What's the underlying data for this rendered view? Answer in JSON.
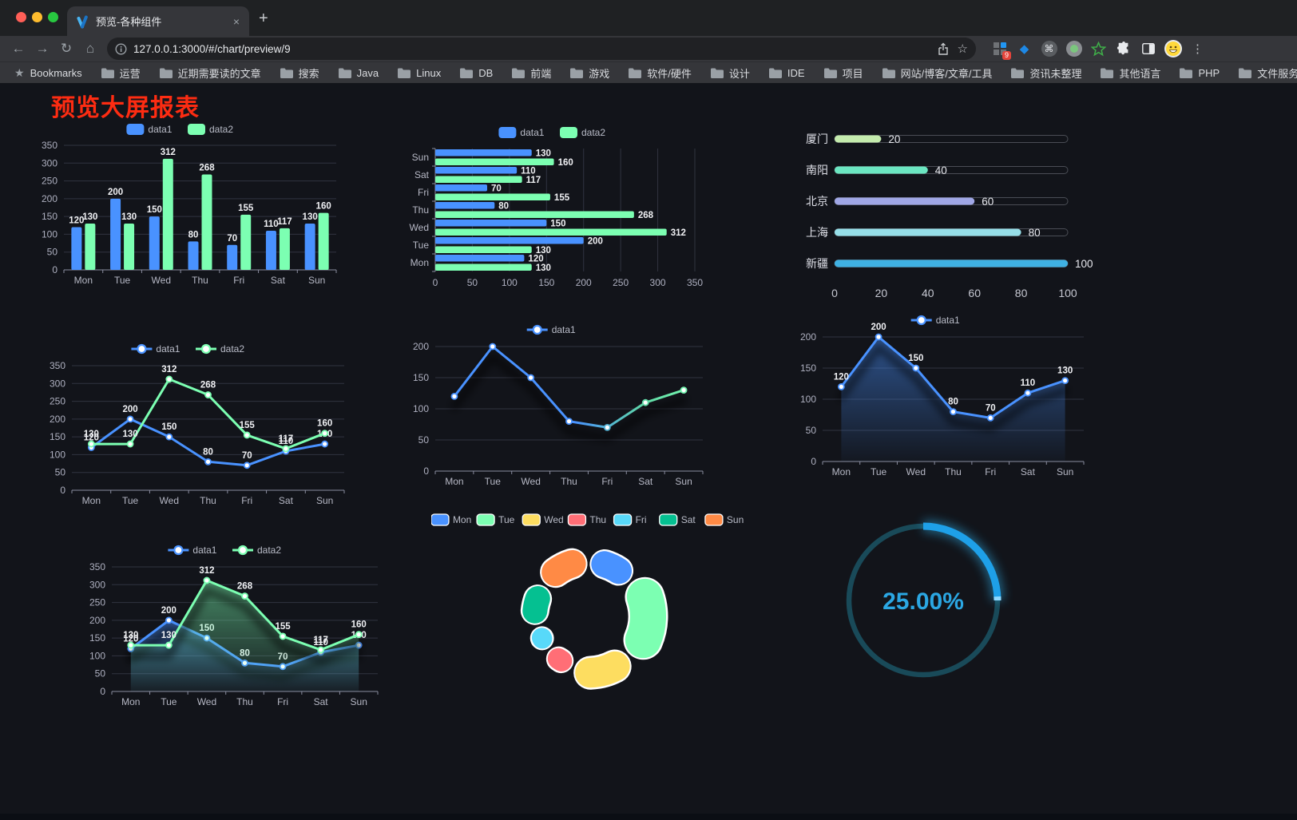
{
  "browser": {
    "tab_title": "预览-各种组件",
    "close_glyph": "×",
    "newtab_glyph": "+",
    "back_glyph": "←",
    "forward_glyph": "→",
    "reload_glyph": "↻",
    "home_glyph": "⌂",
    "url": "127.0.0.1:3000/#/chart/preview/9",
    "star_glyph": "☆",
    "ext_badge": "9",
    "gem_glyph": "◆",
    "cmd_glyph": "⌘",
    "menu_glyph": "⋮",
    "bookmarks_label": "Bookmarks",
    "bookmarks_star": "★",
    "bookmarks": [
      "运营",
      "近期需要读的文章",
      "搜索",
      "Java",
      "Linux",
      "DB",
      "前端",
      "游戏",
      "软件/硬件",
      "设计",
      "IDE",
      "项目",
      "网站/博客/文章/工具",
      "资讯未整理",
      "其他语言",
      "PHP",
      "文件服务器"
    ],
    "overflow_glyph": "»",
    "other_bookmarks": "其他书签"
  },
  "page": {
    "title": "预览大屏报表",
    "title_color": "#fd2c12"
  },
  "chart_data": [
    {
      "id": "bar-vertical",
      "type": "bar",
      "legend": [
        "data1",
        "data2"
      ],
      "categories": [
        "Mon",
        "Tue",
        "Wed",
        "Thu",
        "Fri",
        "Sat",
        "Sun"
      ],
      "series": [
        {
          "name": "data1",
          "color": "#4992ff",
          "values": [
            120,
            200,
            150,
            80,
            70,
            110,
            130
          ]
        },
        {
          "name": "data2",
          "color": "#7cffb2",
          "values": [
            130,
            130,
            312,
            268,
            155,
            117,
            160
          ]
        }
      ],
      "ylim": [
        0,
        350
      ],
      "ytick_step": 50,
      "grid": true
    },
    {
      "id": "bar-horizontal",
      "type": "hbar",
      "legend": [
        "data1",
        "data2"
      ],
      "categories": [
        "Mon",
        "Tue",
        "Wed",
        "Thu",
        "Fri",
        "Sat",
        "Sun"
      ],
      "series": [
        {
          "name": "data1",
          "color": "#4992ff",
          "values": [
            120,
            200,
            150,
            80,
            70,
            110,
            130
          ]
        },
        {
          "name": "data2",
          "color": "#7cffb2",
          "values": [
            130,
            130,
            312,
            268,
            155,
            117,
            160
          ]
        }
      ],
      "xlim": [
        0,
        350
      ],
      "xtick_step": 50,
      "grid": true
    },
    {
      "id": "city-progress",
      "type": "progress",
      "rows": [
        {
          "label": "厦门",
          "value": 20,
          "color": "#c4ebad"
        },
        {
          "label": "南阳",
          "value": 40,
          "color": "#6be6c1"
        },
        {
          "label": "北京",
          "value": 60,
          "color": "#a0a7e6"
        },
        {
          "label": "上海",
          "value": 80,
          "color": "#96dee8"
        },
        {
          "label": "新疆",
          "value": 100,
          "color": "#3fb1e3"
        }
      ],
      "axis_ticks": [
        0,
        20,
        40,
        60,
        80,
        100
      ],
      "max": 100
    },
    {
      "id": "line-two-series",
      "type": "line",
      "legend": [
        "data1",
        "data2"
      ],
      "categories": [
        "Mon",
        "Tue",
        "Wed",
        "Thu",
        "Fri",
        "Sat",
        "Sun"
      ],
      "series": [
        {
          "name": "data1",
          "color": "#4992ff",
          "values": [
            120,
            200,
            150,
            80,
            70,
            110,
            130
          ]
        },
        {
          "name": "data2",
          "color": "#7cffb2",
          "values": [
            130,
            130,
            312,
            268,
            155,
            117,
            160
          ]
        }
      ],
      "ylim": [
        0,
        350
      ],
      "ytick_step": 50,
      "labels": true,
      "grid": true
    },
    {
      "id": "line-gradient",
      "type": "line",
      "legend": [
        "data1"
      ],
      "categories": [
        "Mon",
        "Tue",
        "Wed",
        "Thu",
        "Fri",
        "Sat",
        "Sun"
      ],
      "series": [
        {
          "name": "data1",
          "color": "#4992ff",
          "color2": "#7cffb2",
          "gradient": true,
          "values": [
            120,
            200,
            150,
            80,
            70,
            110,
            130
          ]
        }
      ],
      "ylim": [
        0,
        200
      ],
      "ytick_step": 50,
      "labels": false,
      "shadow": true,
      "grid": true
    },
    {
      "id": "line-area",
      "type": "line",
      "legend": [
        "data1"
      ],
      "categories": [
        "Mon",
        "Tue",
        "Wed",
        "Thu",
        "Fri",
        "Sat",
        "Sun"
      ],
      "series": [
        {
          "name": "data1",
          "color": "#4992ff",
          "area": true,
          "values": [
            120,
            200,
            150,
            80,
            70,
            110,
            130
          ]
        }
      ],
      "ylim": [
        0,
        200
      ],
      "ytick_step": 50,
      "labels": true,
      "shadow": true,
      "grid": true
    },
    {
      "id": "line-two-area",
      "type": "line",
      "legend": [
        "data1",
        "data2"
      ],
      "categories": [
        "Mon",
        "Tue",
        "Wed",
        "Thu",
        "Fri",
        "Sat",
        "Sun"
      ],
      "series": [
        {
          "name": "data1",
          "color": "#4992ff",
          "area": true,
          "values": [
            120,
            200,
            150,
            80,
            70,
            110,
            130
          ]
        },
        {
          "name": "data2",
          "color": "#7cffb2",
          "area": true,
          "values": [
            130,
            130,
            312,
            268,
            155,
            117,
            160
          ]
        }
      ],
      "ylim": [
        0,
        350
      ],
      "ytick_step": 50,
      "labels": true,
      "shadow": true,
      "grid": true
    },
    {
      "id": "rose-donut",
      "type": "pie",
      "legend": [
        "Mon",
        "Tue",
        "Wed",
        "Thu",
        "Fri",
        "Sat",
        "Sun"
      ],
      "slices": [
        {
          "label": "Mon",
          "value": 120,
          "color": "#4992ff"
        },
        {
          "label": "Tue",
          "value": 200,
          "color": "#7cffb2"
        },
        {
          "label": "Wed",
          "value": 150,
          "color": "#fddd60"
        },
        {
          "label": "Thu",
          "value": 80,
          "color": "#ff6e76"
        },
        {
          "label": "Fri",
          "value": 70,
          "color": "#58d9f9"
        },
        {
          "label": "Sat",
          "value": 110,
          "color": "#05c091"
        },
        {
          "label": "Sun",
          "value": 130,
          "color": "#ff8a45"
        }
      ]
    },
    {
      "id": "ring-gauge",
      "type": "gauge",
      "value_text": "25.00%",
      "percent": 25,
      "color": "#1ea0e8",
      "track_color": "#194a59",
      "text_color": "#2ba7e3"
    }
  ]
}
